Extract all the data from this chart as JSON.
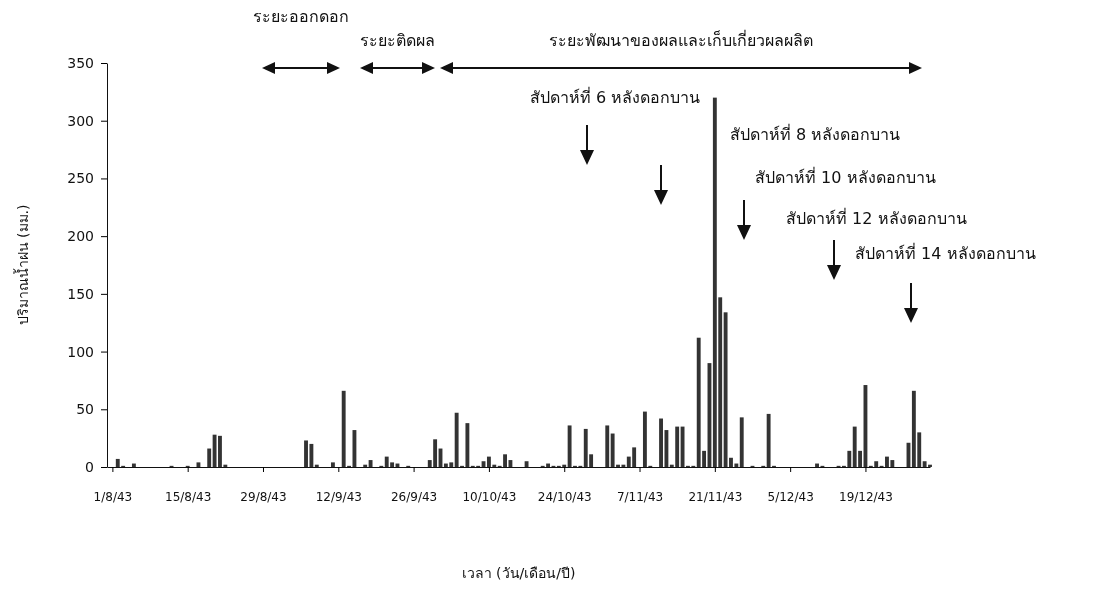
{
  "chart_data": {
    "type": "bar",
    "xlabel": "เวลา (วัน/เดือน/ปี)",
    "ylabel": "ปริมาณน้ำฝน (มม.)",
    "x": [
      "--08-02",
      "--08-03",
      "--08-05",
      "--08-12",
      "--08-15",
      "--08-17",
      "--08-19",
      "--08-20",
      "--08-21",
      "--08-22",
      "--09-06",
      "--09-07",
      "--09-08",
      "--09-11",
      "--09-13",
      "--09-14",
      "--09-15",
      "--09-17",
      "--09-18",
      "--09-20",
      "--09-21",
      "--09-22",
      "--09-23",
      "--09-25",
      "--09-29",
      "--09-30",
      "--10-01",
      "--10-02",
      "--10-03",
      "--10-04",
      "--10-05",
      "--10-06",
      "--10-07",
      "--10-08",
      "--10-09",
      "--10-10",
      "--10-11",
      "--10-12",
      "--10-13",
      "--10-14",
      "--10-17",
      "--10-20",
      "--10-21",
      "--10-22",
      "--10-23",
      "--10-24",
      "--10-25",
      "--10-26",
      "--10-27",
      "--10-28",
      "--10-29",
      "--11-01",
      "--11-02",
      "--11-03",
      "--11-04",
      "--11-05",
      "--11-06",
      "--11-08",
      "--11-09",
      "--11-11",
      "--11-12",
      "--11-13",
      "--11-14",
      "--11-15",
      "--11-16",
      "--11-17",
      "--11-18",
      "--11-19",
      "--11-20",
      "--11-21",
      "--11-22",
      "--11-23",
      "--11-24",
      "--11-25",
      "--11-26",
      "--11-28",
      "--11-30",
      "--12-01",
      "--12-02",
      "--12-10",
      "--12-11",
      "--12-14",
      "--12-15",
      "--12-16",
      "--12-17",
      "--12-18",
      "--12-19",
      "--12-20",
      "--12-21",
      "--12-22",
      "--12-23",
      "--12-24",
      "--12-27",
      "--12-28",
      "--12-29",
      "--12-30",
      "--12-31"
    ],
    "values": [
      7,
      1,
      3,
      1,
      1,
      4,
      16,
      28,
      27,
      2,
      23,
      20,
      2,
      4,
      66,
      1,
      32,
      2,
      6,
      1,
      9,
      4,
      3,
      1,
      6,
      24,
      16,
      3,
      4,
      47,
      1,
      38,
      1,
      1,
      5,
      9,
      2,
      1,
      11,
      6,
      5,
      1,
      3,
      1,
      1,
      2,
      36,
      1,
      1,
      33,
      11,
      36,
      29,
      2,
      2,
      9,
      17,
      48,
      1,
      42,
      32,
      2,
      35,
      35,
      1,
      1,
      112,
      14,
      90,
      320,
      147,
      134,
      8,
      3,
      43,
      1,
      1,
      46,
      1,
      3,
      1,
      1,
      1,
      14,
      35,
      14,
      71,
      1,
      5,
      1,
      9,
      6,
      21,
      66,
      30,
      5,
      2
    ],
    "color": "#333333",
    "xlim": [
      "--07-31",
      "--12-31"
    ],
    "xticks": [
      {
        "value": "--08-01",
        "label": "1/8/43"
      },
      {
        "value": "--08-15",
        "label": "15/8/43"
      },
      {
        "value": "--08-29",
        "label": "29/8/43"
      },
      {
        "value": "--09-12",
        "label": "12/9/43"
      },
      {
        "value": "--09-26",
        "label": "26/9/43"
      },
      {
        "value": "--10-10",
        "label": "10/10/43"
      },
      {
        "value": "--10-24",
        "label": "24/10/43"
      },
      {
        "value": "--11-07",
        "label": "7/11/43"
      },
      {
        "value": "--11-21",
        "label": "21/11/43"
      },
      {
        "value": "--12-05",
        "label": "5/12/43"
      },
      {
        "value": "--12-19",
        "label": "19/12/43"
      }
    ],
    "ylim": [
      0,
      350
    ],
    "yticks": [
      0,
      50,
      100,
      150,
      200,
      250,
      300,
      350
    ],
    "grid": false,
    "annotations": [
      "ระยะออกดอก",
      "ระยะติดผล",
      "ระยะพัฒนาของผลและเก็บเกี่ยวผลผลิต",
      "สัปดาห์ที่ 6 หลังดอกบาน",
      "สัปดาห์ที่ 8  หลังดอกบาน",
      "สัปดาห์ที่ 10 หลังดอกบาน",
      "สัปดาห์ที่ 12 หลังดอกบาน",
      "สัปดาห์ที่ 14 หลังดอกบาน"
    ]
  }
}
